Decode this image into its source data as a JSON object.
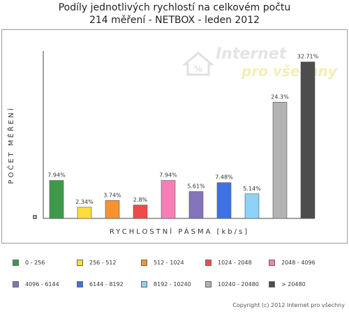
{
  "title_line1": "Podíly jednotlivých rychlostí na celkovém počtu",
  "title_line2": "214 měření - NETBOX - leden 2012",
  "watermark": {
    "line1": "Internet",
    "line2": "pro všechny"
  },
  "copyright": "Copyright (c) 2012 Internet pro všechny",
  "chart_data": {
    "type": "bar",
    "title": "Podíly jednotlivých rychlostí na celkovém počtu 214 měření - NETBOX - leden 2012",
    "xlabel": "RYCHLOSTNÍ PÁSMA [kb/s]",
    "ylabel": "POČET MĚŘENÍ",
    "ylim": [
      0,
      35
    ],
    "grid": false,
    "legend_position": "bottom",
    "categories": [
      "0 - 256",
      "256 - 512",
      "512 - 1024",
      "1024 - 2048",
      "2048 - 4096",
      "4096 - 6144",
      "6144 - 8192",
      "8192 - 10240",
      "10240 - 20480",
      "> 20480"
    ],
    "values": [
      7.94,
      2.34,
      3.74,
      2.8,
      7.94,
      5.61,
      7.48,
      5.14,
      24.3,
      32.71
    ],
    "labels": [
      "7.94%",
      "2.34%",
      "3.74%",
      "2.8%",
      "7.94%",
      "5.61%",
      "7.48%",
      "5.14%",
      "24.3%",
      "32.71%"
    ],
    "colors": [
      "#3e9a49",
      "#fddd3b",
      "#f79232",
      "#ef4a4a",
      "#f77fb8",
      "#8474bb",
      "#3e72e4",
      "#8dd2f7",
      "#b3b3b3",
      "#4d4d4d"
    ]
  }
}
